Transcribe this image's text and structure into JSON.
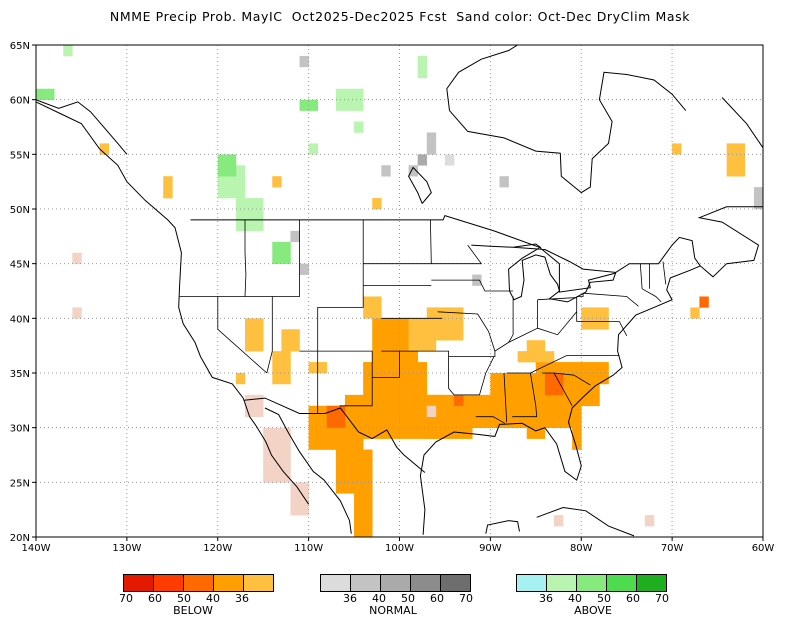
{
  "title": "NMME Precip Prob. MayIC  Oct2025-Dec2025 Fcst  Sand color: Oct-Dec DryClim Mask",
  "lat_labels": [
    "65N",
    "60N",
    "55N",
    "50N",
    "45N",
    "40N",
    "35N",
    "30N",
    "25N",
    "20N"
  ],
  "lon_labels": [
    "140W",
    "130W",
    "120W",
    "110W",
    "100W",
    "90W",
    "80W",
    "70W",
    "60W"
  ],
  "colors": {
    "below": [
      "#e31a00",
      "#ff3c00",
      "#ff6a00",
      "#ff9f00",
      "#ffc040"
    ],
    "normal": [
      "#dcdcdc",
      "#c3c3c3",
      "#aaaaaa",
      "#8c8c8c",
      "#6e6e6e"
    ],
    "above": [
      "#a6f2f2",
      "#b9f5b0",
      "#86ea7f",
      "#4ddc4d",
      "#1fae1f"
    ],
    "sand": "#f2d3c6"
  },
  "legends": {
    "below": {
      "title": "BELOW",
      "labels": [
        "70",
        "60",
        "50",
        "40",
        "36"
      ]
    },
    "normal": {
      "title": "NORMAL",
      "labels": [
        "36",
        "40",
        "50",
        "60",
        "70"
      ]
    },
    "above": {
      "title": "ABOVE",
      "labels": [
        "36",
        "40",
        "50",
        "60",
        "70"
      ]
    }
  }
}
